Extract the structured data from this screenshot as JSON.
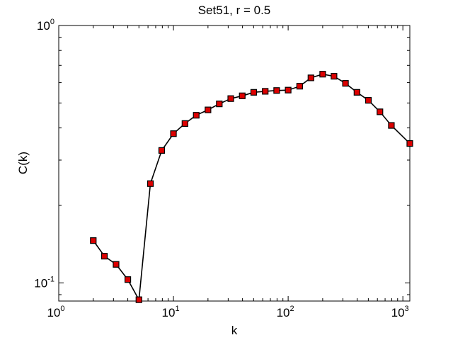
{
  "chart_data": {
    "type": "line",
    "title": "Set51, r = 0.5",
    "xlabel": "k",
    "ylabel": "C(k)",
    "xscale": "log",
    "yscale": "log",
    "xlim": [
      1,
      1150
    ],
    "ylim": [
      0.085,
      1
    ],
    "grid": false,
    "legend": "none",
    "x_ticks": [
      {
        "value": 1,
        "base": "10",
        "exp": "0"
      },
      {
        "value": 10,
        "base": "10",
        "exp": "1"
      },
      {
        "value": 100,
        "base": "10",
        "exp": "2"
      },
      {
        "value": 1000,
        "base": "10",
        "exp": "3"
      }
    ],
    "y_ticks": [
      {
        "value": 0.1,
        "base": "10",
        "exp": "-1"
      },
      {
        "value": 1,
        "base": "10",
        "exp": "0"
      }
    ],
    "series": [
      {
        "line_color": "#000000",
        "marker": "square",
        "marker_color": "#dd0000",
        "x": [
          2.0,
          2.5,
          3.16,
          4.0,
          5.0,
          6.3,
          7.9,
          10.0,
          12.6,
          15.8,
          20.0,
          25.1,
          31.6,
          39.8,
          50.1,
          63.1,
          79.4,
          100,
          126,
          158,
          200,
          251,
          316,
          398,
          501,
          631,
          794,
          1150
        ],
        "y": [
          0.146,
          0.127,
          0.118,
          0.103,
          0.086,
          0.243,
          0.327,
          0.38,
          0.416,
          0.448,
          0.47,
          0.496,
          0.52,
          0.533,
          0.55,
          0.555,
          0.559,
          0.561,
          0.581,
          0.626,
          0.647,
          0.635,
          0.596,
          0.55,
          0.512,
          0.462,
          0.409,
          0.348
        ]
      }
    ]
  }
}
